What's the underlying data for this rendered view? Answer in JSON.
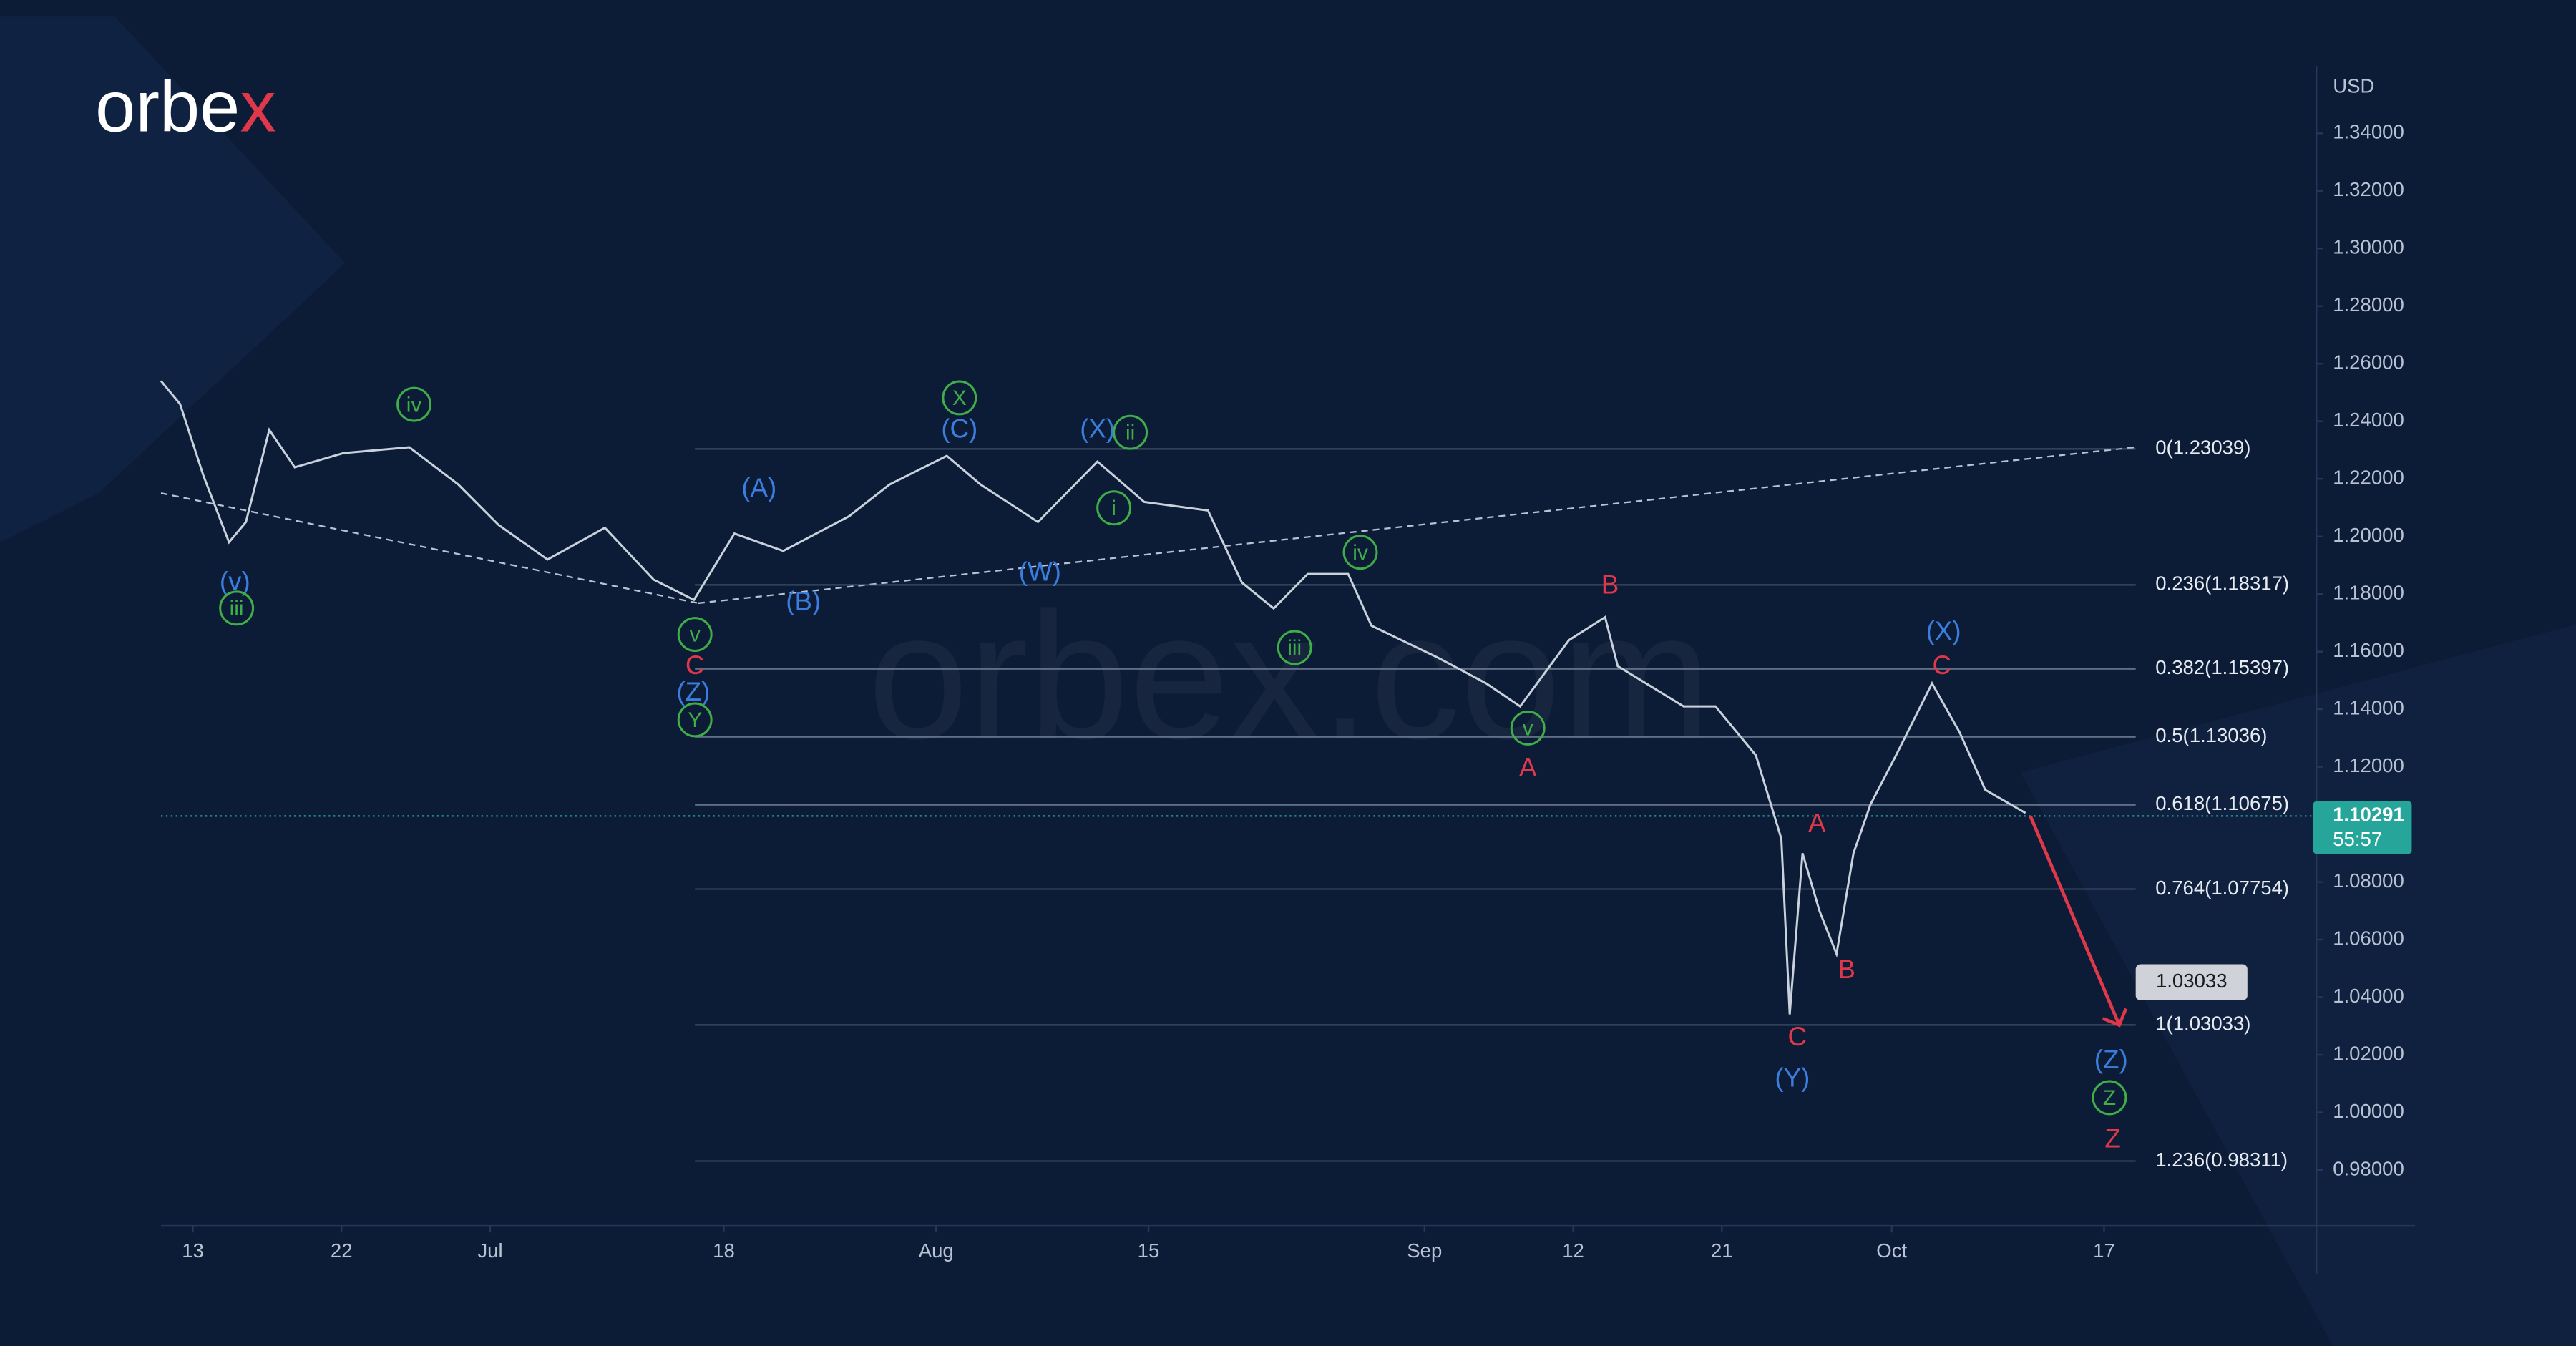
{
  "logo": [
    "orbe",
    "x"
  ],
  "watermark": "orbex.com",
  "chart_data": {
    "type": "line",
    "color": "#c9d1dc",
    "unit": "USD",
    "x": [
      -1.5,
      -0.6,
      0.5,
      1.7,
      2.5,
      3.6,
      4.8,
      7.1,
      10.2,
      12.5,
      14.4,
      16.7,
      19.4,
      21.7,
      23.6,
      25.5,
      27.8,
      30.9,
      32.8,
      35.5,
      37.1,
      39.8,
      42.6,
      44.8,
      47.8,
      49.4,
      50.9,
      52.5,
      54.4,
      55.5,
      58.6,
      60.9,
      62.5,
      64.8,
      66.5,
      67.1,
      70.2,
      71.7,
      73.6,
      74.8,
      75.2,
      75.8,
      76.6,
      77.4,
      78.2,
      79,
      80.2,
      81.9,
      83.2,
      84.4,
      86.3
    ],
    "values": [
      1.254,
      1.246,
      1.221,
      1.198,
      1.205,
      1.237,
      1.224,
      1.229,
      1.231,
      1.218,
      1.204,
      1.192,
      1.203,
      1.185,
      1.178,
      1.201,
      1.195,
      1.207,
      1.218,
      1.228,
      1.218,
      1.205,
      1.226,
      1.212,
      1.209,
      1.184,
      1.175,
      1.187,
      1.187,
      1.169,
      1.158,
      1.149,
      1.141,
      1.164,
      1.172,
      1.155,
      1.141,
      1.141,
      1.124,
      1.095,
      1.034,
      1.09,
      1.07,
      1.055,
      1.09,
      1.107,
      1.124,
      1.149,
      1.132,
      1.112,
      1.104
    ],
    "xlim": [
      -1.5,
      100
    ],
    "xticks": [
      {
        "value": 0,
        "label": "13"
      },
      {
        "value": 7,
        "label": "22"
      },
      {
        "value": 14,
        "label": "Jul"
      },
      {
        "value": 25,
        "label": "18"
      },
      {
        "value": 35,
        "label": "Aug"
      },
      {
        "value": 45,
        "label": "15"
      },
      {
        "value": 58,
        "label": "Sep"
      },
      {
        "value": 65,
        "label": "12"
      },
      {
        "value": 72,
        "label": "21"
      },
      {
        "value": 80,
        "label": "Oct"
      },
      {
        "value": 90,
        "label": "17"
      }
    ],
    "ylim": [
      0.9606,
      1.3634
    ],
    "yticks": [
      {
        "value": 0.98,
        "label": "0.98000"
      },
      {
        "value": 1,
        "label": "1.00000"
      },
      {
        "value": 1.02,
        "label": "1.02000"
      },
      {
        "value": 1.04,
        "label": "1.04000"
      },
      {
        "value": 1.06,
        "label": "1.06000"
      },
      {
        "value": 1.08,
        "label": "1.08000"
      },
      {
        "value": 1.1,
        "label": "1.10000"
      },
      {
        "value": 1.12,
        "label": "1.12000"
      },
      {
        "value": 1.14,
        "label": "1.14000"
      },
      {
        "value": 1.16,
        "label": "1.16000"
      },
      {
        "value": 1.18,
        "label": "1.18000"
      },
      {
        "value": 1.2,
        "label": "1.20000"
      },
      {
        "value": 1.22,
        "label": "1.22000"
      },
      {
        "value": 1.24,
        "label": "1.24000"
      },
      {
        "value": 1.26,
        "label": "1.26000"
      },
      {
        "value": 1.28,
        "label": "1.28000"
      },
      {
        "value": 1.3,
        "label": "1.30000"
      },
      {
        "value": 1.32,
        "label": "1.32000"
      },
      {
        "value": 1.34,
        "label": "1.34000"
      }
    ],
    "last_price": 1.10291,
    "countdown": "55:57",
    "last_color": "#26a69a",
    "fib_levels": [
      {
        "value": 1.23039,
        "label": "0(1.23039)"
      },
      {
        "value": 1.18317,
        "label": "0.236(1.18317)"
      },
      {
        "value": 1.15397,
        "label": "0.382(1.15397)"
      },
      {
        "value": 1.13036,
        "label": "0.5(1.13036)"
      },
      {
        "value": 1.10675,
        "label": "0.618(1.10675)"
      },
      {
        "value": 1.07754,
        "label": "0.764(1.07754)"
      },
      {
        "value": 1.03033,
        "label": "1(1.03033)"
      },
      {
        "value": 0.98311,
        "label": "1.236(0.98311)"
      }
    ],
    "target": 1.03033,
    "arrow_color": "#e0384b",
    "annotations": [
      {
        "text": "(v)",
        "color": "#3b7ddd"
      },
      {
        "text": "(A)",
        "color": "#3b7ddd"
      },
      {
        "text": "(B)",
        "color": "#3b7ddd"
      },
      {
        "text": "(C)",
        "color": "#3b7ddd"
      },
      {
        "text": "(W)",
        "color": "#3b7ddd"
      },
      {
        "text": "(X)",
        "color": "#3b7ddd"
      },
      {
        "text": "(Z)",
        "color": "#3b7ddd"
      },
      {
        "text": "(X)",
        "color": "#3b7ddd"
      },
      {
        "text": "(Y)",
        "color": "#3b7ddd"
      },
      {
        "text": "(Z)",
        "color": "#3b7ddd"
      },
      {
        "text": "iii",
        "color": "#3fae49"
      },
      {
        "text": "iv",
        "color": "#3fae49"
      },
      {
        "text": "v",
        "color": "#3fae49"
      },
      {
        "text": "Y",
        "color": "#3fae49"
      },
      {
        "text": "X",
        "color": "#3fae49"
      },
      {
        "text": "ii",
        "color": "#3fae49"
      },
      {
        "text": "i",
        "color": "#3fae49"
      },
      {
        "text": "iv",
        "color": "#3fae49"
      },
      {
        "text": "iii",
        "color": "#3fae49"
      },
      {
        "text": "v",
        "color": "#3fae49"
      },
      {
        "text": "Z",
        "color": "#3fae49"
      },
      {
        "text": "C",
        "color": "#e0384b"
      },
      {
        "text": "A",
        "color": "#e0384b"
      },
      {
        "text": "B",
        "color": "#e0384b"
      },
      {
        "text": "A",
        "color": "#e0384b"
      },
      {
        "text": "B",
        "color": "#e0384b"
      },
      {
        "text": "C",
        "color": "#e0384b"
      },
      {
        "text": "C",
        "color": "#e0384b"
      },
      {
        "text": "Z",
        "color": "#e0384b"
      }
    ]
  }
}
